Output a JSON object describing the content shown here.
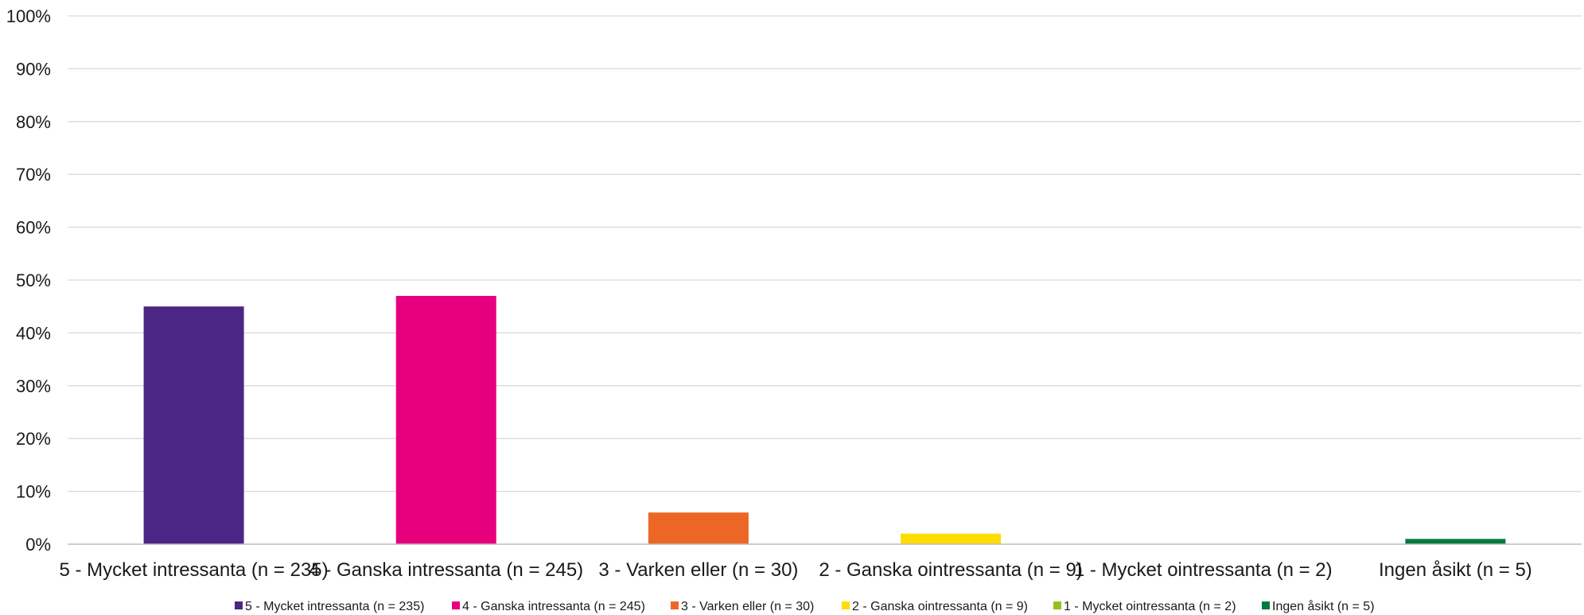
{
  "chart_data": {
    "type": "bar",
    "categories": [
      "5 - Mycket intressanta (n = 235)",
      "4 - Ganska intressanta (n = 245)",
      "3 - Varken eller (n = 30)",
      "2 - Ganska ointressanta (n = 9)",
      "1 - Mycket ointressanta (n = 2)",
      "Ingen åsikt (n = 5)"
    ],
    "values": [
      45,
      47,
      6,
      2,
      0,
      1
    ],
    "colors": [
      "#4d2585",
      "#e6007e",
      "#ec6726",
      "#ffdd00",
      "#95c11f",
      "#007a3d"
    ],
    "title": "",
    "xlabel": "",
    "ylabel": "",
    "ylim": [
      0,
      100
    ],
    "ytick_labels": [
      "0%",
      "10%",
      "20%",
      "30%",
      "40%",
      "50%",
      "60%",
      "70%",
      "80%",
      "90%",
      "100%"
    ],
    "grid": true,
    "legend": {
      "position": "bottom",
      "entries": [
        "5 - Mycket intressanta (n = 235)",
        "4 - Ganska intressanta (n = 245)",
        "3 - Varken eller (n = 30)",
        "2 - Ganska ointressanta (n = 9)",
        "1 - Mycket ointressanta (n = 2)",
        "Ingen åsikt (n = 5)"
      ]
    }
  }
}
